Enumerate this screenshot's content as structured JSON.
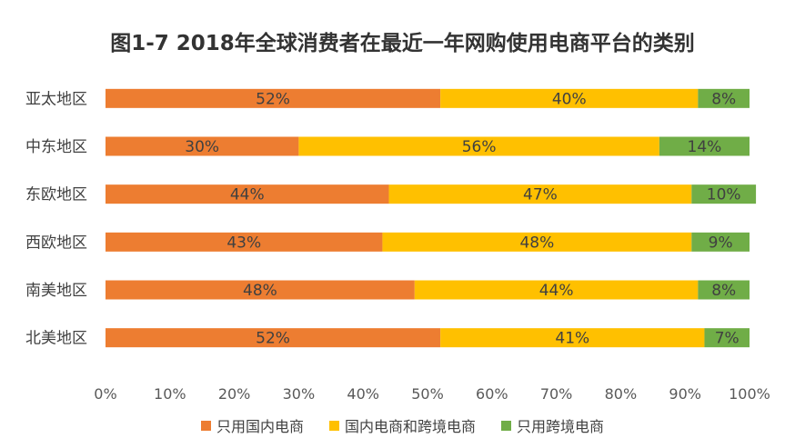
{
  "chart_data": {
    "type": "bar",
    "orientation": "horizontal",
    "stacked": true,
    "title": "图1-7  2018年全球消费者在最近一年网购使用电商平台的类别",
    "categories": [
      "亚太地区",
      "中东地区",
      "东欧地区",
      "西欧地区",
      "南美地区",
      "北美地区"
    ],
    "series": [
      {
        "name": "只用国内电商",
        "color": "#ED7D31",
        "values": [
          52,
          30,
          44,
          43,
          48,
          52
        ]
      },
      {
        "name": "国内电商和跨境电商",
        "color": "#FFC000",
        "values": [
          40,
          56,
          47,
          48,
          44,
          41
        ]
      },
      {
        "name": "只用跨境电商",
        "color": "#70AD47",
        "values": [
          8,
          14,
          10,
          9,
          8,
          7
        ]
      }
    ],
    "x_ticks": [
      "0%",
      "10%",
      "20%",
      "30%",
      "40%",
      "50%",
      "60%",
      "70%",
      "80%",
      "90%",
      "100%"
    ],
    "xlim": [
      0,
      100
    ],
    "xlabel": "",
    "ylabel": "",
    "legend_position": "bottom",
    "grid": true
  }
}
